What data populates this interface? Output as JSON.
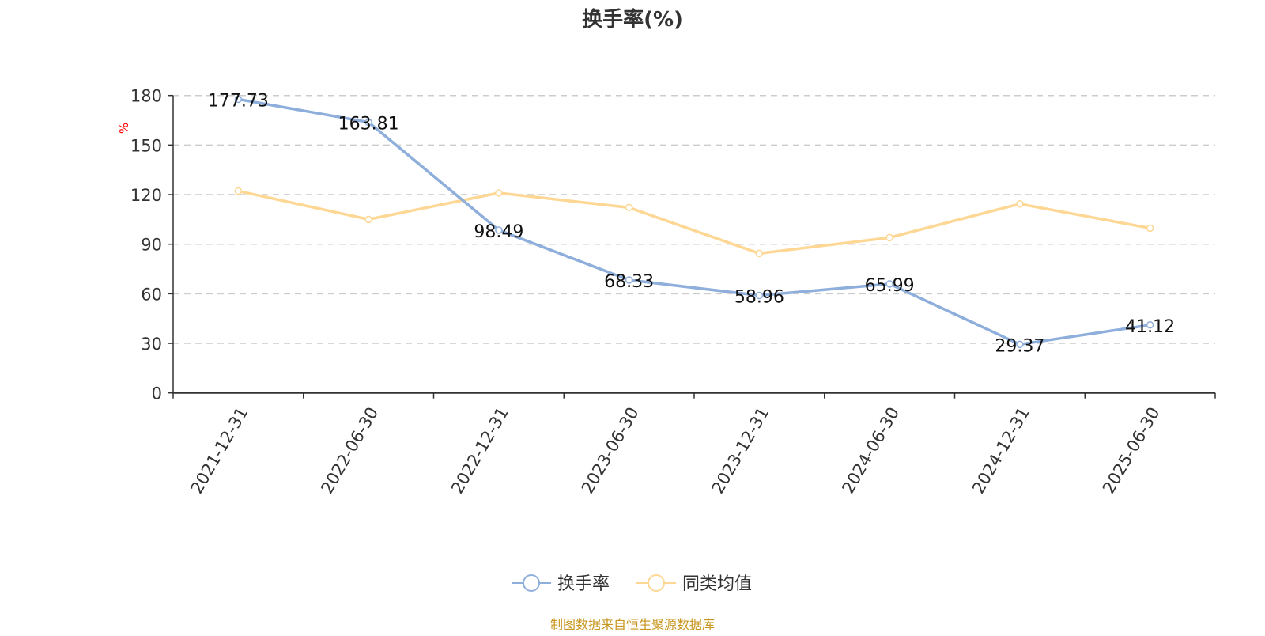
{
  "chart_data": {
    "type": "line",
    "title": "换手率(%)",
    "ylabel": "%",
    "ylim": [
      0,
      180
    ],
    "yticks": [
      0,
      30,
      60,
      90,
      120,
      150,
      180
    ],
    "grid": true,
    "legend_placement": "bottom",
    "categories": [
      "2021-12-31",
      "2022-06-30",
      "2022-12-31",
      "2023-06-30",
      "2023-12-31",
      "2024-06-30",
      "2024-12-31",
      "2025-06-30"
    ],
    "series": [
      {
        "name": "换手率",
        "color": "#8eaedb",
        "values": [
          177.73,
          163.81,
          98.49,
          68.33,
          58.96,
          65.99,
          29.37,
          41.12
        ],
        "labels": [
          "177.73",
          "163.81",
          "98.49",
          "68.33",
          "58.96",
          "65.99",
          "29.37",
          "41.12"
        ]
      },
      {
        "name": "同类均值",
        "color": "#fdd793",
        "values": [
          122.2,
          105.0,
          121.0,
          112.2,
          84.4,
          94.0,
          114.4,
          99.7
        ]
      }
    ]
  },
  "footer": {
    "source": "制图数据来自恒生聚源数据库",
    "color": "#c8961e"
  }
}
